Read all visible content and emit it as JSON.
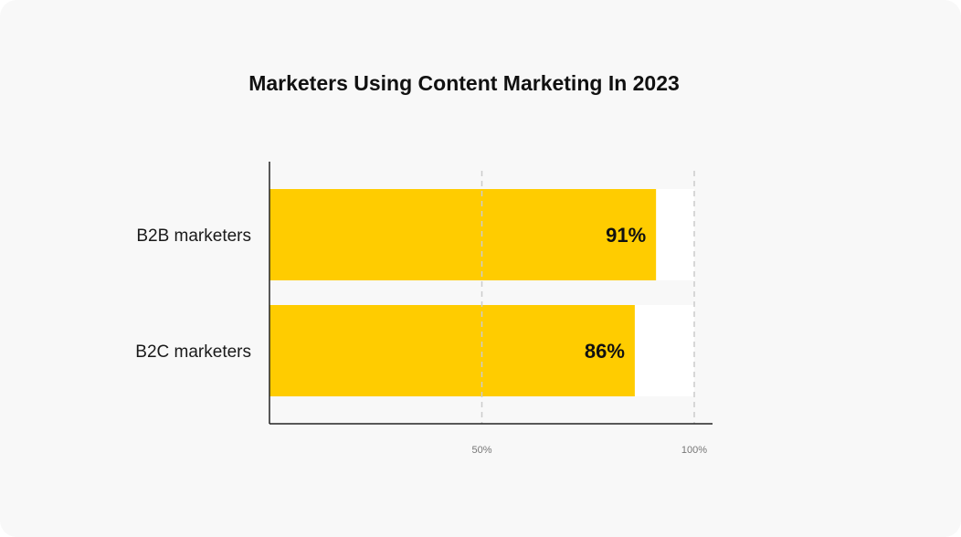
{
  "chart_data": {
    "type": "bar",
    "orientation": "horizontal",
    "title": "Marketers Using Content Marketing In 2023",
    "categories": [
      "B2B marketers",
      "B2C marketers"
    ],
    "values": [
      91,
      86
    ],
    "value_labels": [
      "91%",
      "86%"
    ],
    "xlim": [
      0,
      100
    ],
    "xticks": [
      50,
      100
    ],
    "xtick_labels": [
      "50%",
      "100%"
    ],
    "xlabel": "",
    "ylabel": "",
    "grid": "vertical dashed",
    "legend": "none",
    "colors": {
      "bar": "#FFCC00",
      "track": "#FFFFFF",
      "background": "#F8F8F8",
      "axis": "#222222",
      "grid": "#CCCCCC"
    }
  }
}
